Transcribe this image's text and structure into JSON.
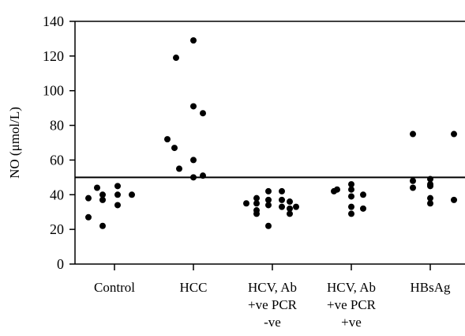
{
  "chart_data": {
    "type": "scatter",
    "ylabel": "NO (μmol/L)",
    "ylim": [
      0,
      140
    ],
    "yticks": [
      0,
      20,
      40,
      60,
      80,
      100,
      120,
      140
    ],
    "grid": false,
    "reference_line": 50,
    "categories": [
      {
        "name": "Control",
        "lines": [
          "Control"
        ]
      },
      {
        "name": "HCC",
        "lines": [
          "HCC"
        ]
      },
      {
        "name": "HCV, Ab +ve PCR -ve",
        "lines": [
          "HCV, Ab",
          "+ve PCR",
          "-ve"
        ]
      },
      {
        "name": "HCV, Ab +ve PCR +ve",
        "lines": [
          "HCV, Ab",
          "+ve PCR",
          "+ve"
        ]
      },
      {
        "name": "HBsAg",
        "lines": [
          "HBsAg"
        ]
      }
    ],
    "points": [
      [
        {
          "dx": -0.33,
          "y": 38
        },
        {
          "dx": -0.22,
          "y": 44
        },
        {
          "dx": -0.15,
          "y": 40
        },
        {
          "dx": -0.15,
          "y": 37
        },
        {
          "dx": 0.04,
          "y": 45
        },
        {
          "dx": 0.04,
          "y": 40
        },
        {
          "dx": 0.04,
          "y": 34
        },
        {
          "dx": 0.22,
          "y": 40
        },
        {
          "dx": -0.33,
          "y": 27
        },
        {
          "dx": -0.15,
          "y": 22
        }
      ],
      [
        {
          "dx": -0.22,
          "y": 119
        },
        {
          "dx": 0.0,
          "y": 129
        },
        {
          "dx": 0.0,
          "y": 91
        },
        {
          "dx": 0.12,
          "y": 87
        },
        {
          "dx": -0.33,
          "y": 72
        },
        {
          "dx": -0.24,
          "y": 67
        },
        {
          "dx": 0.0,
          "y": 60
        },
        {
          "dx": -0.18,
          "y": 55
        },
        {
          "dx": 0.0,
          "y": 50
        },
        {
          "dx": 0.12,
          "y": 51
        }
      ],
      [
        {
          "dx": -0.33,
          "y": 35
        },
        {
          "dx": -0.2,
          "y": 38
        },
        {
          "dx": -0.2,
          "y": 35
        },
        {
          "dx": -0.2,
          "y": 31
        },
        {
          "dx": -0.2,
          "y": 29
        },
        {
          "dx": -0.05,
          "y": 42
        },
        {
          "dx": -0.05,
          "y": 37
        },
        {
          "dx": -0.05,
          "y": 34
        },
        {
          "dx": -0.05,
          "y": 22
        },
        {
          "dx": 0.12,
          "y": 42
        },
        {
          "dx": 0.12,
          "y": 37
        },
        {
          "dx": 0.12,
          "y": 33
        },
        {
          "dx": 0.22,
          "y": 36
        },
        {
          "dx": 0.22,
          "y": 32
        },
        {
          "dx": 0.22,
          "y": 29
        },
        {
          "dx": 0.3,
          "y": 33
        }
      ],
      [
        {
          "dx": -0.22,
          "y": 42
        },
        {
          "dx": -0.18,
          "y": 43
        },
        {
          "dx": 0.0,
          "y": 46
        },
        {
          "dx": 0.0,
          "y": 43
        },
        {
          "dx": 0.0,
          "y": 39
        },
        {
          "dx": 0.0,
          "y": 33
        },
        {
          "dx": 0.0,
          "y": 29
        },
        {
          "dx": 0.15,
          "y": 40
        },
        {
          "dx": 0.15,
          "y": 32
        }
      ],
      [
        {
          "dx": -0.22,
          "y": 75
        },
        {
          "dx": 0.3,
          "y": 75
        },
        {
          "dx": -0.22,
          "y": 48
        },
        {
          "dx": -0.22,
          "y": 44
        },
        {
          "dx": 0.0,
          "y": 49
        },
        {
          "dx": 0.0,
          "y": 46
        },
        {
          "dx": 0.0,
          "y": 45
        },
        {
          "dx": 0.0,
          "y": 38
        },
        {
          "dx": 0.0,
          "y": 35
        },
        {
          "dx": 0.3,
          "y": 37
        }
      ]
    ]
  }
}
